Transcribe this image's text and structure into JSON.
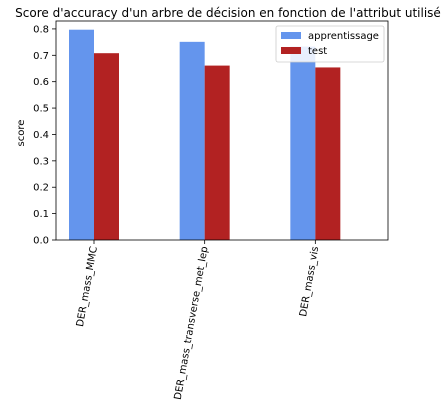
{
  "chart_data": {
    "type": "bar",
    "title": "Score d'accuracy d'un arbre de décision en fonction de l'attribut utilisé",
    "xlabel": "",
    "ylabel": "score",
    "categories": [
      "DER_mass_MMC",
      "DER_mass_transverse_met_lep",
      "DER_mass_vis"
    ],
    "series": [
      {
        "name": "apprentissage",
        "color": "#6495ED",
        "values": [
          0.797,
          0.751,
          0.733
        ]
      },
      {
        "name": "test",
        "color": "#B22222",
        "values": [
          0.708,
          0.661,
          0.654
        ]
      }
    ],
    "ylim": [
      0,
      0.83
    ],
    "yticks": [
      0.0,
      0.1,
      0.2,
      0.3,
      0.4,
      0.5,
      0.6,
      0.7,
      0.8
    ],
    "ytick_labels": [
      "0.0",
      "0.1",
      "0.2",
      "0.3",
      "0.4",
      "0.5",
      "0.6",
      "0.7",
      "0.8"
    ],
    "grid": false,
    "legend": "top-right"
  }
}
